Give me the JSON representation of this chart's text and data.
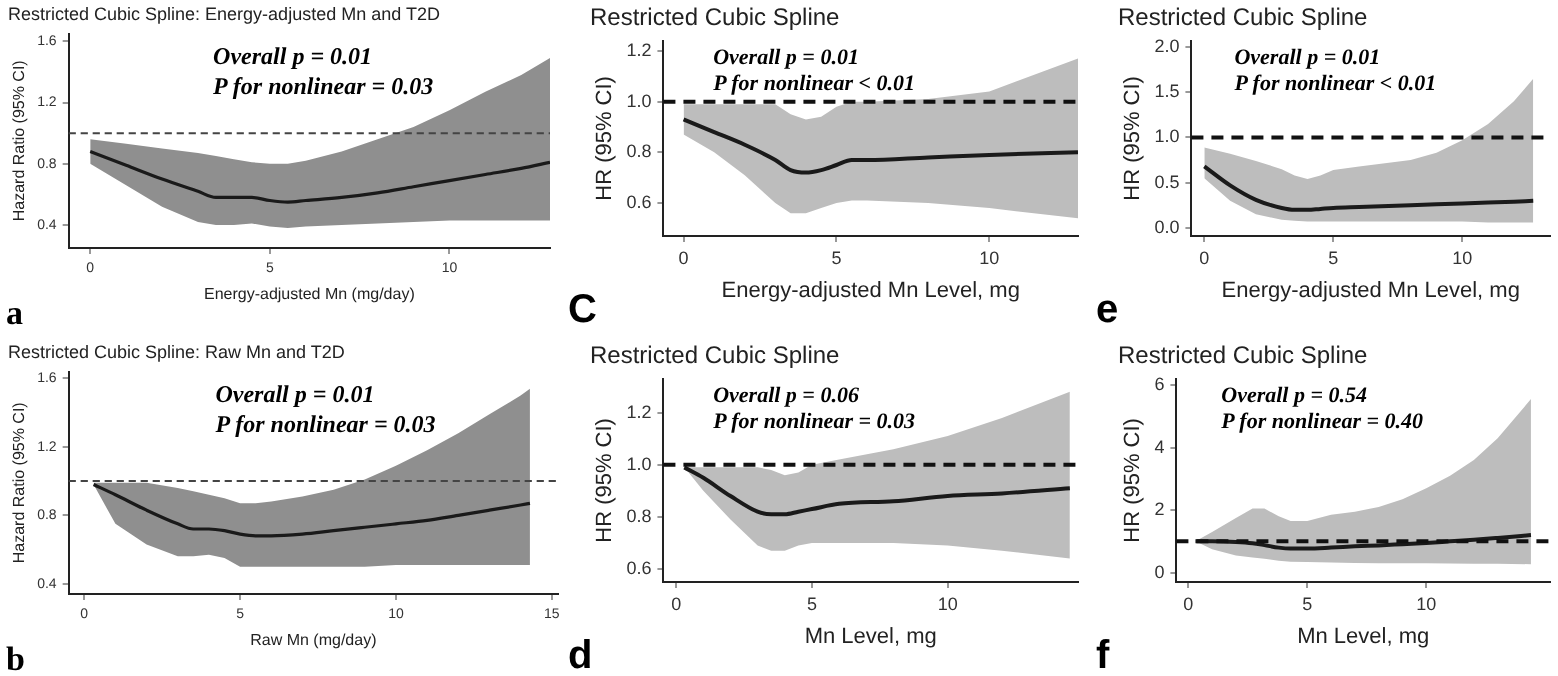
{
  "chart_data": [
    {
      "type": "line",
      "title": "Restricted Cubic Spline: Energy-adjusted Mn and T2D",
      "xlabel": "Energy-adjusted Mn (mg/day)",
      "ylabel": "Hazard Ratio (95% CI)",
      "annotations": [
        "Overall p = 0.01",
        "P for nonlinear = 0.03",
        "a"
      ],
      "xlim": [
        -0.6,
        12.8
      ],
      "xticks": [
        0,
        5,
        10
      ],
      "ylim": [
        0.25,
        1.65
      ],
      "yticks": [
        0.4,
        0.8,
        1.2,
        1.6
      ],
      "ref_lines": [
        {
          "axis": "y",
          "value": 1.0,
          "color": "#444444",
          "line_style": "dashed"
        }
      ],
      "series": [
        {
          "color": "#1a1a1a",
          "x": [
            0,
            1,
            2,
            3,
            3.5,
            4,
            4.5,
            5,
            5.5,
            6,
            7,
            8,
            9,
            10,
            11,
            12,
            12.8
          ],
          "values": [
            0.88,
            0.79,
            0.7,
            0.62,
            0.58,
            0.58,
            0.58,
            0.56,
            0.55,
            0.56,
            0.58,
            0.61,
            0.65,
            0.69,
            0.73,
            0.77,
            0.81
          ],
          "lower": [
            0.8,
            0.66,
            0.52,
            0.42,
            0.4,
            0.4,
            0.41,
            0.39,
            0.38,
            0.39,
            0.4,
            0.41,
            0.42,
            0.43,
            0.43,
            0.43,
            0.43
          ],
          "upper": [
            0.96,
            0.93,
            0.9,
            0.87,
            0.85,
            0.83,
            0.81,
            0.8,
            0.8,
            0.82,
            0.88,
            0.96,
            1.04,
            1.15,
            1.27,
            1.38,
            1.49
          ]
        }
      ]
    },
    {
      "type": "line",
      "title": "Restricted Cubic Spline",
      "xlabel": "Energy-adjusted Mn Level, mg",
      "ylabel": "HR (95% CI)",
      "annotations": [
        "Overall p = 0.01",
        "P for nonlinear < 0.01",
        "C"
      ],
      "xlim": [
        -0.66,
        12.9
      ],
      "xticks": [
        0,
        5,
        10
      ],
      "ylim": [
        0.47,
        1.24
      ],
      "yticks": [
        0.6,
        0.8,
        {
          "value": 1,
          "label": "1.0"
        },
        1.2
      ],
      "ref_lines": [
        {
          "axis": "y",
          "value": 1.0,
          "color": "#111111",
          "line_style": "dashed"
        }
      ],
      "series": [
        {
          "color": "#1a1a1a",
          "x": [
            0,
            1,
            2,
            3,
            3.5,
            4,
            4.5,
            5,
            5.5,
            6,
            8,
            10,
            12.9
          ],
          "values": [
            0.93,
            0.88,
            0.83,
            0.77,
            0.73,
            0.72,
            0.73,
            0.75,
            0.77,
            0.77,
            0.78,
            0.79,
            0.8
          ],
          "lower": [
            0.87,
            0.8,
            0.71,
            0.6,
            0.56,
            0.56,
            0.58,
            0.6,
            0.61,
            0.61,
            0.6,
            0.58,
            0.54
          ],
          "upper": [
            0.99,
            0.99,
            0.99,
            0.99,
            0.95,
            0.93,
            0.94,
            0.98,
            1.0,
            1.0,
            1.01,
            1.04,
            1.17
          ]
        }
      ]
    },
    {
      "type": "line",
      "title": "Restricted Cubic Spline",
      "xlabel": "Energy-adjusted Mn Level, mg",
      "ylabel": "HR (95% CI)",
      "annotations": [
        "Overall p = 0.01",
        "P for nonlinear < 0.01",
        "e"
      ],
      "xlim": [
        -0.5,
        13.4
      ],
      "xticks": [
        0,
        5,
        10
      ],
      "ylim": [
        -0.09,
        2.07
      ],
      "yticks": [
        {
          "value": 0,
          "label": "0.0"
        },
        0.5,
        {
          "value": 1,
          "label": "1.0"
        },
        1.5,
        {
          "value": 2,
          "label": "2.0"
        }
      ],
      "ref_lines": [
        {
          "axis": "y",
          "value": 1.0,
          "color": "#111111",
          "line_style": "dashed"
        }
      ],
      "series": [
        {
          "color": "#1a1a1a",
          "x": [
            0,
            1,
            2,
            3,
            3.5,
            4,
            4.5,
            5,
            6,
            8,
            9,
            10,
            11,
            12,
            12.75
          ],
          "values": [
            0.68,
            0.47,
            0.31,
            0.22,
            0.2,
            0.2,
            0.21,
            0.22,
            0.23,
            0.25,
            0.26,
            0.27,
            0.28,
            0.29,
            0.3
          ],
          "lower": [
            0.55,
            0.3,
            0.15,
            0.09,
            0.08,
            0.07,
            0.07,
            0.07,
            0.07,
            0.07,
            0.07,
            0.07,
            0.06,
            0.06,
            0.06
          ],
          "upper": [
            0.89,
            0.82,
            0.74,
            0.65,
            0.58,
            0.54,
            0.58,
            0.64,
            0.68,
            0.75,
            0.83,
            0.97,
            1.15,
            1.4,
            1.65
          ]
        }
      ]
    },
    {
      "type": "line",
      "title": "Restricted Cubic Spline: Raw Mn and T2D",
      "xlabel": "Raw Mn (mg/day)",
      "ylabel": "Hazard Ratio (95% CI)",
      "annotations": [
        "Overall p = 0.01",
        "P for nonlinear = 0.03",
        "b"
      ],
      "xlim": [
        -0.5,
        15.2
      ],
      "xticks": [
        0,
        5,
        10,
        15
      ],
      "ylim": [
        0.34,
        1.64
      ],
      "yticks": [
        0.4,
        0.8,
        1.2,
        1.6
      ],
      "ref_lines": [
        {
          "axis": "y",
          "value": 1.0,
          "color": "#444444",
          "line_style": "dashed"
        }
      ],
      "series": [
        {
          "color": "#1a1a1a",
          "x": [
            0.3,
            1,
            2,
            3,
            3.5,
            4,
            4.5,
            5,
            5.5,
            6,
            7,
            8,
            9,
            10,
            11,
            12,
            13,
            14,
            14.3
          ],
          "values": [
            0.98,
            0.92,
            0.83,
            0.75,
            0.72,
            0.72,
            0.71,
            0.69,
            0.68,
            0.68,
            0.69,
            0.71,
            0.73,
            0.75,
            0.77,
            0.8,
            0.83,
            0.86,
            0.87
          ],
          "lower": [
            0.98,
            0.75,
            0.63,
            0.56,
            0.56,
            0.57,
            0.55,
            0.5,
            0.5,
            0.5,
            0.5,
            0.5,
            0.5,
            0.51,
            0.51,
            0.51,
            0.51,
            0.51,
            0.51
          ],
          "upper": [
            0.99,
            0.99,
            0.99,
            0.96,
            0.94,
            0.92,
            0.9,
            0.87,
            0.87,
            0.88,
            0.91,
            0.95,
            1.01,
            1.09,
            1.18,
            1.28,
            1.39,
            1.5,
            1.54
          ]
        }
      ]
    },
    {
      "type": "line",
      "title": "Restricted Cubic Spline",
      "xlabel": "Mn Level, mg",
      "ylabel": "HR (95% CI)",
      "annotations": [
        "Overall p = 0.06",
        "P for nonlinear = 0.03",
        "d"
      ],
      "xlim": [
        -0.47,
        14.8
      ],
      "xticks": [
        0,
        5,
        10
      ],
      "ylim": [
        0.55,
        1.33
      ],
      "yticks": [
        0.6,
        0.8,
        {
          "value": 1,
          "label": "1.0"
        },
        1.2
      ],
      "ref_lines": [
        {
          "axis": "y",
          "value": 1.0,
          "color": "#111111",
          "line_style": "dashed"
        }
      ],
      "series": [
        {
          "color": "#1a1a1a",
          "x": [
            0.3,
            1,
            2,
            3,
            3.5,
            4,
            4.5,
            5,
            6,
            8,
            10,
            12,
            14.5
          ],
          "values": [
            0.99,
            0.95,
            0.88,
            0.82,
            0.81,
            0.81,
            0.82,
            0.83,
            0.85,
            0.86,
            0.88,
            0.89,
            0.91
          ],
          "lower": [
            0.99,
            0.9,
            0.79,
            0.69,
            0.67,
            0.67,
            0.69,
            0.7,
            0.7,
            0.7,
            0.69,
            0.67,
            0.64
          ],
          "upper": [
            0.99,
            0.99,
            0.99,
            0.99,
            0.98,
            0.96,
            0.97,
            1.0,
            1.02,
            1.06,
            1.11,
            1.18,
            1.28
          ]
        }
      ]
    },
    {
      "type": "line",
      "title": "Restricted Cubic Spline",
      "xlabel": "Mn Level, mg",
      "ylabel": "HR (95% CI)",
      "annotations": [
        "Overall p = 0.54",
        "P for nonlinear = 0.40",
        "f"
      ],
      "xlim": [
        -0.5,
        15.2
      ],
      "xticks": [
        0,
        5,
        10
      ],
      "ylim": [
        -0.3,
        6.2
      ],
      "yticks": [
        0,
        2,
        4,
        6
      ],
      "ref_lines": [
        {
          "axis": "y",
          "value": 1.0,
          "color": "#111111",
          "line_style": "dashed"
        }
      ],
      "series": [
        {
          "color": "#1a1a1a",
          "x": [
            0.3,
            1,
            2,
            2.7,
            3.2,
            3.8,
            4.3,
            5,
            6,
            7,
            8,
            9,
            10,
            11,
            12,
            13,
            14.4
          ],
          "values": [
            1.0,
            1.0,
            0.98,
            0.94,
            0.88,
            0.8,
            0.77,
            0.77,
            0.8,
            0.84,
            0.87,
            0.91,
            0.95,
            1.0,
            1.05,
            1.11,
            1.2
          ],
          "lower": [
            1.0,
            0.75,
            0.55,
            0.48,
            0.44,
            0.38,
            0.35,
            0.34,
            0.32,
            0.31,
            0.3,
            0.3,
            0.3,
            0.29,
            0.28,
            0.28,
            0.27
          ],
          "upper": [
            1.0,
            1.3,
            1.75,
            2.05,
            2.05,
            1.8,
            1.65,
            1.65,
            1.85,
            1.95,
            2.1,
            2.35,
            2.7,
            3.1,
            3.6,
            4.3,
            5.55
          ]
        }
      ]
    }
  ]
}
